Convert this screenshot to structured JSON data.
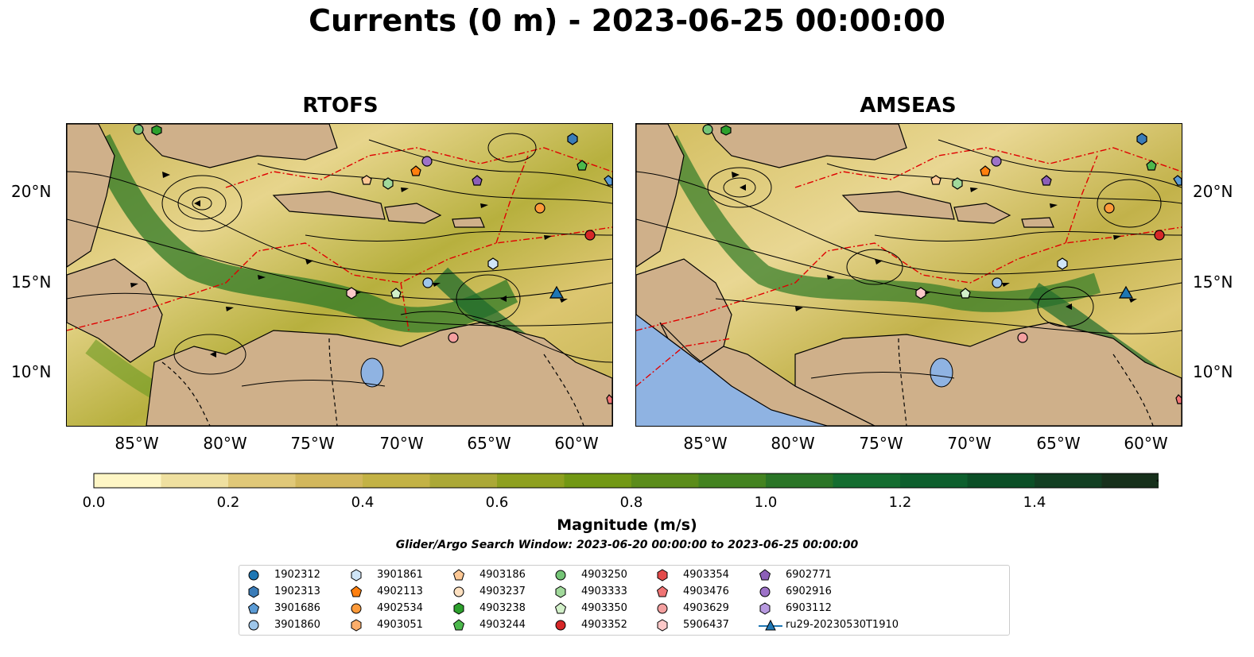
{
  "title": "Currents (0 m) - 2023-06-25 00:00:00",
  "panels": [
    {
      "title": "RTOFS"
    },
    {
      "title": "AMSEAS"
    }
  ],
  "lat_labels": [
    "20°N",
    "15°N",
    "10°N"
  ],
  "lon_labels": [
    "85°W",
    "80°W",
    "75°W",
    "70°W",
    "65°W",
    "60°W"
  ],
  "colorbar": {
    "label": "Magnitude (m/s)",
    "ticks": [
      "0.0",
      "0.2",
      "0.4",
      "0.6",
      "0.8",
      "1.0",
      "1.2",
      "1.4"
    ],
    "colors": [
      "#fef6c5",
      "#efe0a0",
      "#e0c878",
      "#d2b75c",
      "#c3b245",
      "#aba836",
      "#8ea01f",
      "#729814",
      "#5b8c1a",
      "#438320",
      "#2a7526",
      "#146d30",
      "#0d5f2d",
      "#0b4f26",
      "#123f22",
      "#17301b"
    ]
  },
  "search_window": "Glider/Argo Search Window: 2023-06-20 00:00:00 to 2023-06-25 00:00:00",
  "legend": [
    {
      "label": "1902312",
      "shape": "circle",
      "color": "#1f77b4"
    },
    {
      "label": "1902313",
      "shape": "hexagon",
      "color": "#3a7cb8"
    },
    {
      "label": "3901686",
      "shape": "pentagon",
      "color": "#5b9bd5"
    },
    {
      "label": "3901860",
      "shape": "circle",
      "color": "#9ec6ea"
    },
    {
      "label": "3901861",
      "shape": "hexagon",
      "color": "#cfe5f7"
    },
    {
      "label": "4902113",
      "shape": "pentagon",
      "color": "#ff7f0e"
    },
    {
      "label": "4902534",
      "shape": "circle",
      "color": "#fd9a3a"
    },
    {
      "label": "4903051",
      "shape": "hexagon",
      "color": "#fdae6b"
    },
    {
      "label": "4903186",
      "shape": "pentagon",
      "color": "#fdc895"
    },
    {
      "label": "4903237",
      "shape": "circle",
      "color": "#fde0c0"
    },
    {
      "label": "4903238",
      "shape": "hexagon",
      "color": "#2ca02c"
    },
    {
      "label": "4903244",
      "shape": "pentagon",
      "color": "#4cb84c"
    },
    {
      "label": "4903250",
      "shape": "circle",
      "color": "#74c476"
    },
    {
      "label": "4903333",
      "shape": "hexagon",
      "color": "#a1d99b"
    },
    {
      "label": "4903350",
      "shape": "pentagon",
      "color": "#d2f0c9"
    },
    {
      "label": "4903352",
      "shape": "circle",
      "color": "#d62728"
    },
    {
      "label": "4903354",
      "shape": "hexagon",
      "color": "#e34a4a"
    },
    {
      "label": "4903476",
      "shape": "pentagon",
      "color": "#f07474"
    },
    {
      "label": "4903629",
      "shape": "circle",
      "color": "#f4a0a0"
    },
    {
      "label": "5906437",
      "shape": "hexagon",
      "color": "#fcc9c9"
    },
    {
      "label": "6902771",
      "shape": "pentagon",
      "color": "#8c5fb8"
    },
    {
      "label": "6902916",
      "shape": "circle",
      "color": "#9d72c8"
    },
    {
      "label": "6903112",
      "shape": "hexagon",
      "color": "#b89ae0"
    },
    {
      "label": "ru29-20230530T1910",
      "shape": "triangle-line",
      "color": "#1f77b4"
    }
  ]
}
